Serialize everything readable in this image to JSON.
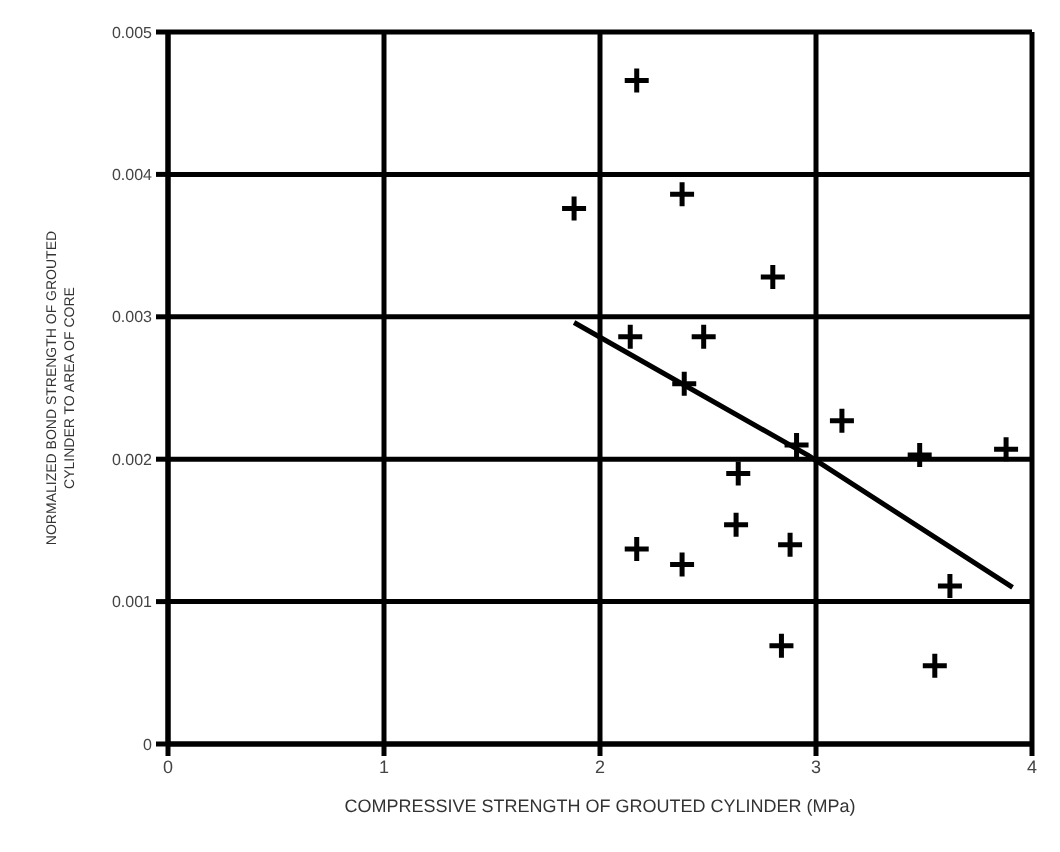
{
  "chart_data": {
    "type": "scatter",
    "xlabel": "COMPRESSIVE STRENGTH OF GROUTED CYLINDER (MPa)",
    "ylabel": "NORMALIZED BOND STRENGTH OF GROUTED CYLINDER TO AREA OF CORE",
    "xlim": [
      0,
      4
    ],
    "xticks": [
      0,
      1,
      2,
      3,
      4
    ],
    "ylim": [
      0,
      0.005
    ],
    "yticks": [
      0,
      0.001,
      0.002,
      0.003,
      0.004,
      0.005
    ],
    "grid": true,
    "series": [
      {
        "marker": "cross",
        "color": "#000000",
        "x": [
          2.17,
          1.88,
          2.38,
          2.8,
          2.14,
          2.48,
          2.39,
          3.12,
          2.91,
          3.48,
          3.88,
          2.64,
          2.63,
          2.17,
          2.38,
          2.88,
          3.62,
          2.84,
          3.55
        ],
        "values": [
          0.00466,
          0.00376,
          0.00386,
          0.00328,
          0.00286,
          0.00286,
          0.00253,
          0.00227,
          0.0021,
          0.00203,
          0.00207,
          0.0019,
          0.00154,
          0.00137,
          0.00126,
          0.0014,
          0.00111,
          0.00069,
          0.00055
        ]
      },
      {
        "type": "line",
        "color": "#000000",
        "line_style": "solid",
        "x": [
          1.88,
          2.96,
          3.91
        ],
        "values": [
          0.00296,
          0.00203,
          0.0011
        ]
      }
    ]
  }
}
